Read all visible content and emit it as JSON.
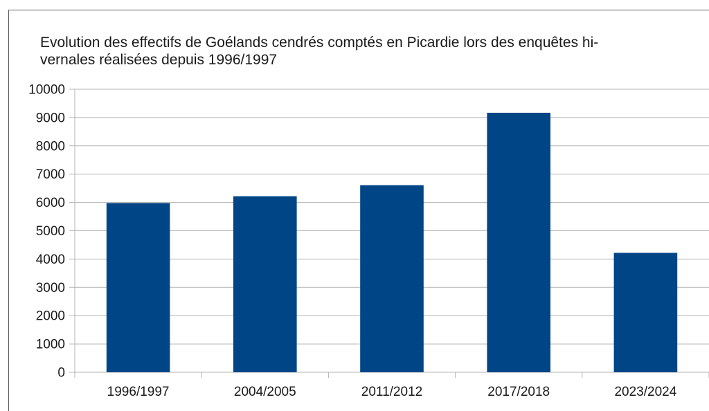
{
  "chart_data": {
    "type": "bar",
    "title_lines": [
      "Evolution des effectifs de Goélands cendrés comptés en Picardie lors des enquêtes hi-",
      "vernales réalisées depuis 1996/1997"
    ],
    "categories": [
      "1996/1997",
      "2004/2005",
      "2011/2012",
      "2017/2018",
      "2023/2024"
    ],
    "values": [
      5980,
      6220,
      6610,
      9170,
      4220
    ],
    "yticks": [
      "0",
      "1000",
      "2000",
      "3000",
      "4000",
      "5000",
      "6000",
      "7000",
      "8000",
      "9000",
      "10000"
    ],
    "ylim": [
      0,
      10000
    ],
    "xlabel": "",
    "ylabel": "",
    "grid": true,
    "bar_color": "#004586"
  }
}
